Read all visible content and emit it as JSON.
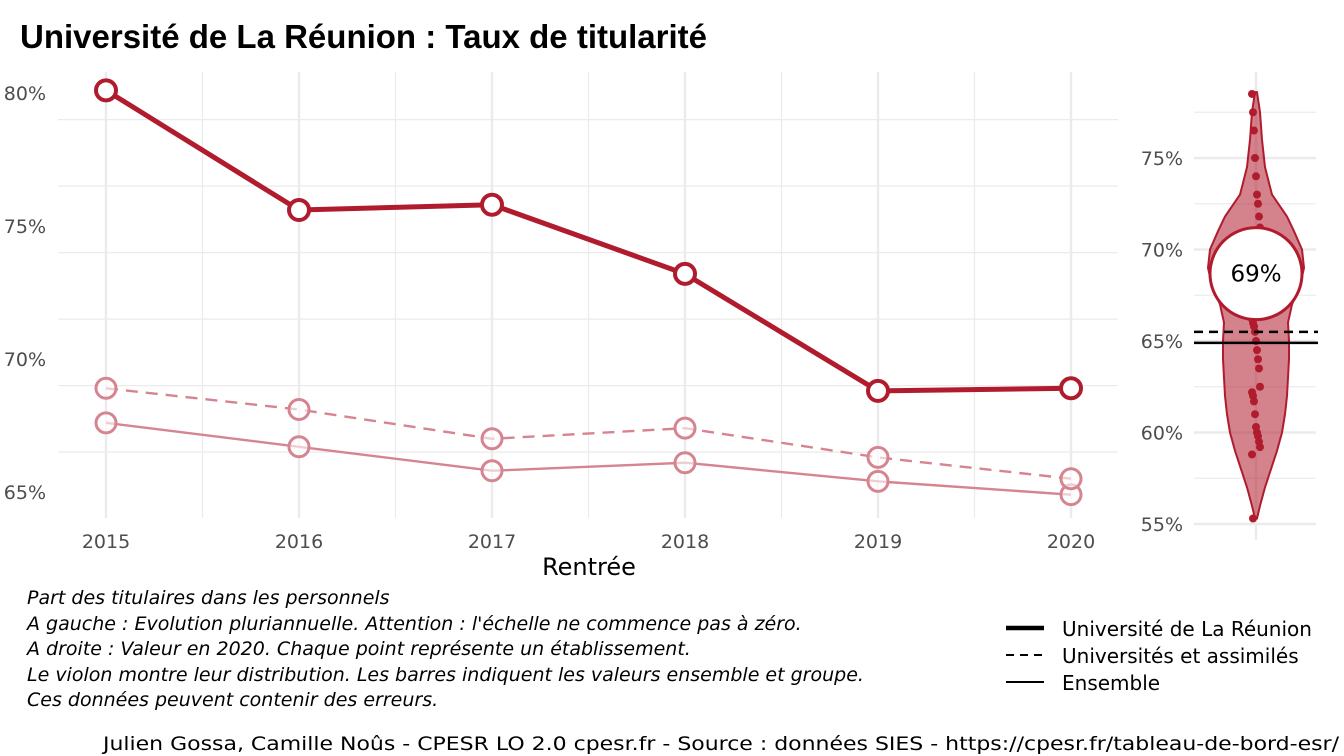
{
  "title": "Université de La Réunion  :  Taux de titularité",
  "colors": {
    "primary": "#b01c2e",
    "faded": "#d6848f",
    "grid": "#ebebeb",
    "text": "#4d4d4d"
  },
  "chart_data": [
    {
      "type": "line",
      "title": "Université de La Réunion  :  Taux de titularité",
      "xlabel": "Rentrée",
      "ylabel": "",
      "x": [
        2015,
        2016,
        2017,
        2018,
        2019,
        2020
      ],
      "x_tick_labels": [
        "2015",
        "2016",
        "2017",
        "2018",
        "2019",
        "2020"
      ],
      "y_tick_labels": [
        "65%",
        "70%",
        "75%",
        "80%"
      ],
      "ylim": [
        64,
        81
      ],
      "grid": true,
      "series": [
        {
          "name": "Université de La Réunion",
          "style": "solid-thick",
          "values": [
            80.1,
            75.6,
            75.8,
            73.2,
            68.8,
            68.9
          ]
        },
        {
          "name": "Universités et assimilés",
          "style": "dashed",
          "values": [
            68.9,
            68.1,
            67.0,
            67.4,
            66.3,
            65.5
          ]
        },
        {
          "name": "Ensemble",
          "style": "solid-thin",
          "values": [
            67.6,
            66.7,
            65.8,
            66.1,
            65.4,
            64.9
          ]
        }
      ]
    },
    {
      "type": "scatter",
      "subtype": "violin",
      "y_tick_labels": [
        "55%",
        "60%",
        "65%",
        "70%",
        "75%"
      ],
      "ylim": [
        54.5,
        79.5
      ],
      "grid": true,
      "highlight_value": 68.9,
      "highlight_label": "69%",
      "reference_lines": [
        {
          "name": "Universités et assimilés",
          "style": "dashed",
          "value": 65.5
        },
        {
          "name": "Ensemble",
          "style": "solid",
          "value": 64.9
        }
      ],
      "values": [
        78.5,
        77.5,
        76.5,
        75.0,
        74.0,
        73.0,
        72.5,
        71.8,
        71.2,
        70.5,
        70.0,
        69.5,
        69.0,
        68.5,
        68.0,
        67.5,
        67.0,
        66.5,
        66.2,
        66.0,
        65.8,
        65.5,
        65.0,
        64.5,
        64.0,
        63.5,
        62.5,
        62.2,
        62.0,
        61.7,
        61.0,
        60.3,
        60.0,
        59.8,
        59.5,
        59.2,
        58.8,
        55.3
      ]
    }
  ],
  "legend": {
    "items": [
      {
        "label": "Université de La Réunion",
        "style": "thick"
      },
      {
        "label": "Universités et assimilés",
        "style": "dashed"
      },
      {
        "label": "Ensemble",
        "style": "thin"
      }
    ]
  },
  "notes": {
    "lines": [
      "Part des titulaires dans les personnels",
      "A gauche : Evolution pluriannuelle. Attention : l'échelle ne commence pas à zéro.",
      "A droite : Valeur en 2020. Chaque point représente un établissement.",
      "Le violon montre leur distribution. Les barres indiquent les valeurs ensemble et groupe.",
      "Ces données peuvent contenir des erreurs."
    ]
  },
  "caption": "Julien Gossa, Camille Noûs - CPESR LO 2.0 cpesr.fr - Source : données SIES - https://cpesr.fr/tableau-de-bord-esr/"
}
